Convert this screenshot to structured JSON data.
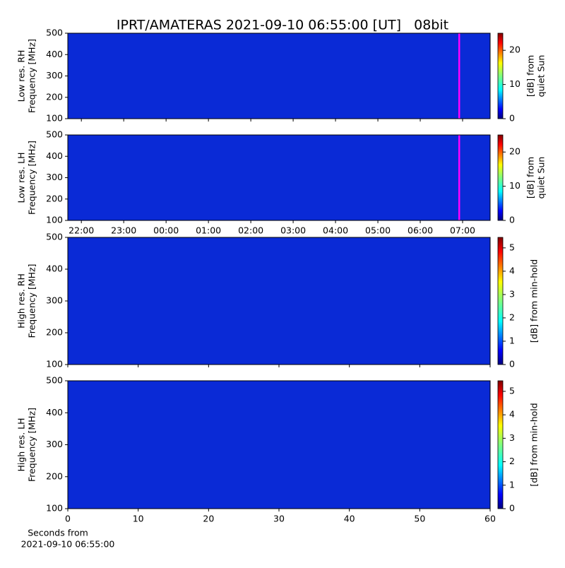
{
  "chart_data": [
    {
      "type": "heatmap",
      "title": "IPRT/AMATERAS 2021-09-10 06:55:00 [UT]   08bit",
      "ylabel": [
        "Low res. RH",
        "Frequency [MHz]"
      ],
      "colorbar_label": [
        "[dB] from",
        "quiet Sun"
      ],
      "xlim": [
        21.68,
        31.65
      ],
      "xticks": [
        22,
        23,
        24,
        25,
        26,
        27,
        28,
        29,
        30,
        31
      ],
      "show_xtick_labels": false,
      "ylim": [
        100,
        500
      ],
      "yticks": [
        100,
        200,
        300,
        400,
        500
      ],
      "clim": [
        0,
        25
      ],
      "cticks": [
        0,
        10,
        20
      ],
      "colormap": "jet",
      "marker_x": 30.92,
      "marker_color": "#ff00ff"
    },
    {
      "type": "heatmap",
      "ylabel": [
        "Low res. LH",
        "Frequency [MHz]"
      ],
      "colorbar_label": [
        "[dB] from",
        "quiet Sun"
      ],
      "xlim": [
        21.68,
        31.65
      ],
      "xticks": [
        {
          "value": 22,
          "label": "22:00"
        },
        {
          "value": 23,
          "label": "23:00"
        },
        {
          "value": 24,
          "label": "00:00"
        },
        {
          "value": 25,
          "label": "01:00"
        },
        {
          "value": 26,
          "label": "02:00"
        },
        {
          "value": 27,
          "label": "03:00"
        },
        {
          "value": 28,
          "label": "04:00"
        },
        {
          "value": 29,
          "label": "05:00"
        },
        {
          "value": 30,
          "label": "06:00"
        },
        {
          "value": 31,
          "label": "07:00"
        }
      ],
      "show_xtick_labels": true,
      "ylim": [
        100,
        500
      ],
      "yticks": [
        100,
        200,
        300,
        400,
        500
      ],
      "clim": [
        0,
        25
      ],
      "cticks": [
        0,
        10,
        20
      ],
      "colormap": "jet",
      "marker_x": 30.92,
      "marker_color": "#ff00ff"
    },
    {
      "type": "heatmap",
      "ylabel": [
        "High res. RH",
        "Frequency [MHz]"
      ],
      "colorbar_label": [
        "[dB] from min-hold"
      ],
      "xlim": [
        0,
        60
      ],
      "xticks": [
        0,
        10,
        20,
        30,
        40,
        50,
        60
      ],
      "show_xtick_labels": false,
      "ylim": [
        100,
        500
      ],
      "yticks": [
        100,
        200,
        300,
        400,
        500
      ],
      "clim": [
        0,
        5.45
      ],
      "cticks": [
        0,
        1,
        2,
        3,
        4,
        5
      ],
      "colormap": "jet"
    },
    {
      "type": "heatmap",
      "ylabel": [
        "High res. LH",
        "Frequency [MHz]"
      ],
      "colorbar_label": [
        "[dB] from min-hold"
      ],
      "xlabel": [
        "Seconds from",
        "2021-09-10 06:55:00"
      ],
      "xlim": [
        0,
        60
      ],
      "xticks": [
        0,
        10,
        20,
        30,
        40,
        50,
        60
      ],
      "show_xtick_labels": true,
      "ylim": [
        100,
        500
      ],
      "yticks": [
        100,
        200,
        300,
        400,
        500
      ],
      "clim": [
        0,
        5.45
      ],
      "cticks": [
        0,
        1,
        2,
        3,
        4,
        5
      ],
      "colormap": "jet"
    }
  ]
}
